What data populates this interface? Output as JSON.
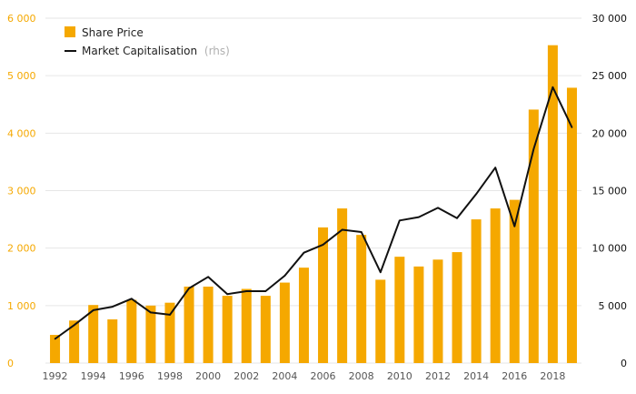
{
  "chart_data": {
    "type": "bar",
    "categories": [
      "1992",
      "1993",
      "1994",
      "1995",
      "1996",
      "1997",
      "1998",
      "1999",
      "2000",
      "2001",
      "2002",
      "2003",
      "2004",
      "2005",
      "2006",
      "2007",
      "2008",
      "2009",
      "2010",
      "2011",
      "2012",
      "2013",
      "2014",
      "2015",
      "2016",
      "2017",
      "2018",
      "2019"
    ],
    "x_tick_labels": [
      "1992",
      "1994",
      "1996",
      "1998",
      "2000",
      "2002",
      "2004",
      "2006",
      "2008",
      "2010",
      "2012",
      "2014",
      "2016",
      "2018"
    ],
    "series": [
      {
        "name": "Share Price",
        "type": "bar",
        "axis": "left",
        "values": [
          490,
          740,
          1010,
          760,
          1100,
          1000,
          1050,
          1330,
          1330,
          1170,
          1290,
          1170,
          1400,
          1660,
          2360,
          2690,
          2230,
          1450,
          1850,
          1680,
          1800,
          1930,
          2500,
          2690,
          2840,
          4410,
          5530,
          4790
        ]
      },
      {
        "name": "Market Capitalisation",
        "name_note": "(rhs)",
        "type": "line",
        "axis": "right",
        "values": [
          2100,
          3300,
          4600,
          4900,
          5600,
          4400,
          4200,
          6500,
          7500,
          6000,
          6250,
          6250,
          7600,
          9600,
          10300,
          11600,
          11400,
          7900,
          12400,
          12700,
          13500,
          12600,
          14700,
          17000,
          11900,
          18600,
          24000,
          20500
        ]
      }
    ],
    "y_left": {
      "ylim": [
        0,
        6000
      ],
      "ticks": [
        0,
        1000,
        2000,
        3000,
        4000,
        5000,
        6000
      ],
      "tick_labels": [
        "0",
        "1 000",
        "2 000",
        "3 000",
        "4 000",
        "5 000",
        "6 000"
      ]
    },
    "y_right": {
      "ylim": [
        0,
        30000
      ],
      "ticks": [
        0,
        5000,
        10000,
        15000,
        20000,
        25000,
        30000
      ],
      "tick_labels": [
        "0",
        "5 000",
        "10 000",
        "15 000",
        "20 000",
        "25 000",
        "30 000"
      ]
    },
    "legend_position": "top-left",
    "grid": true,
    "colors": {
      "bar": "#f5a800",
      "line": "#111111",
      "grid": "#e6e6e6",
      "left_axis_text": "#f5a800",
      "right_axis_text": "#111111"
    }
  }
}
